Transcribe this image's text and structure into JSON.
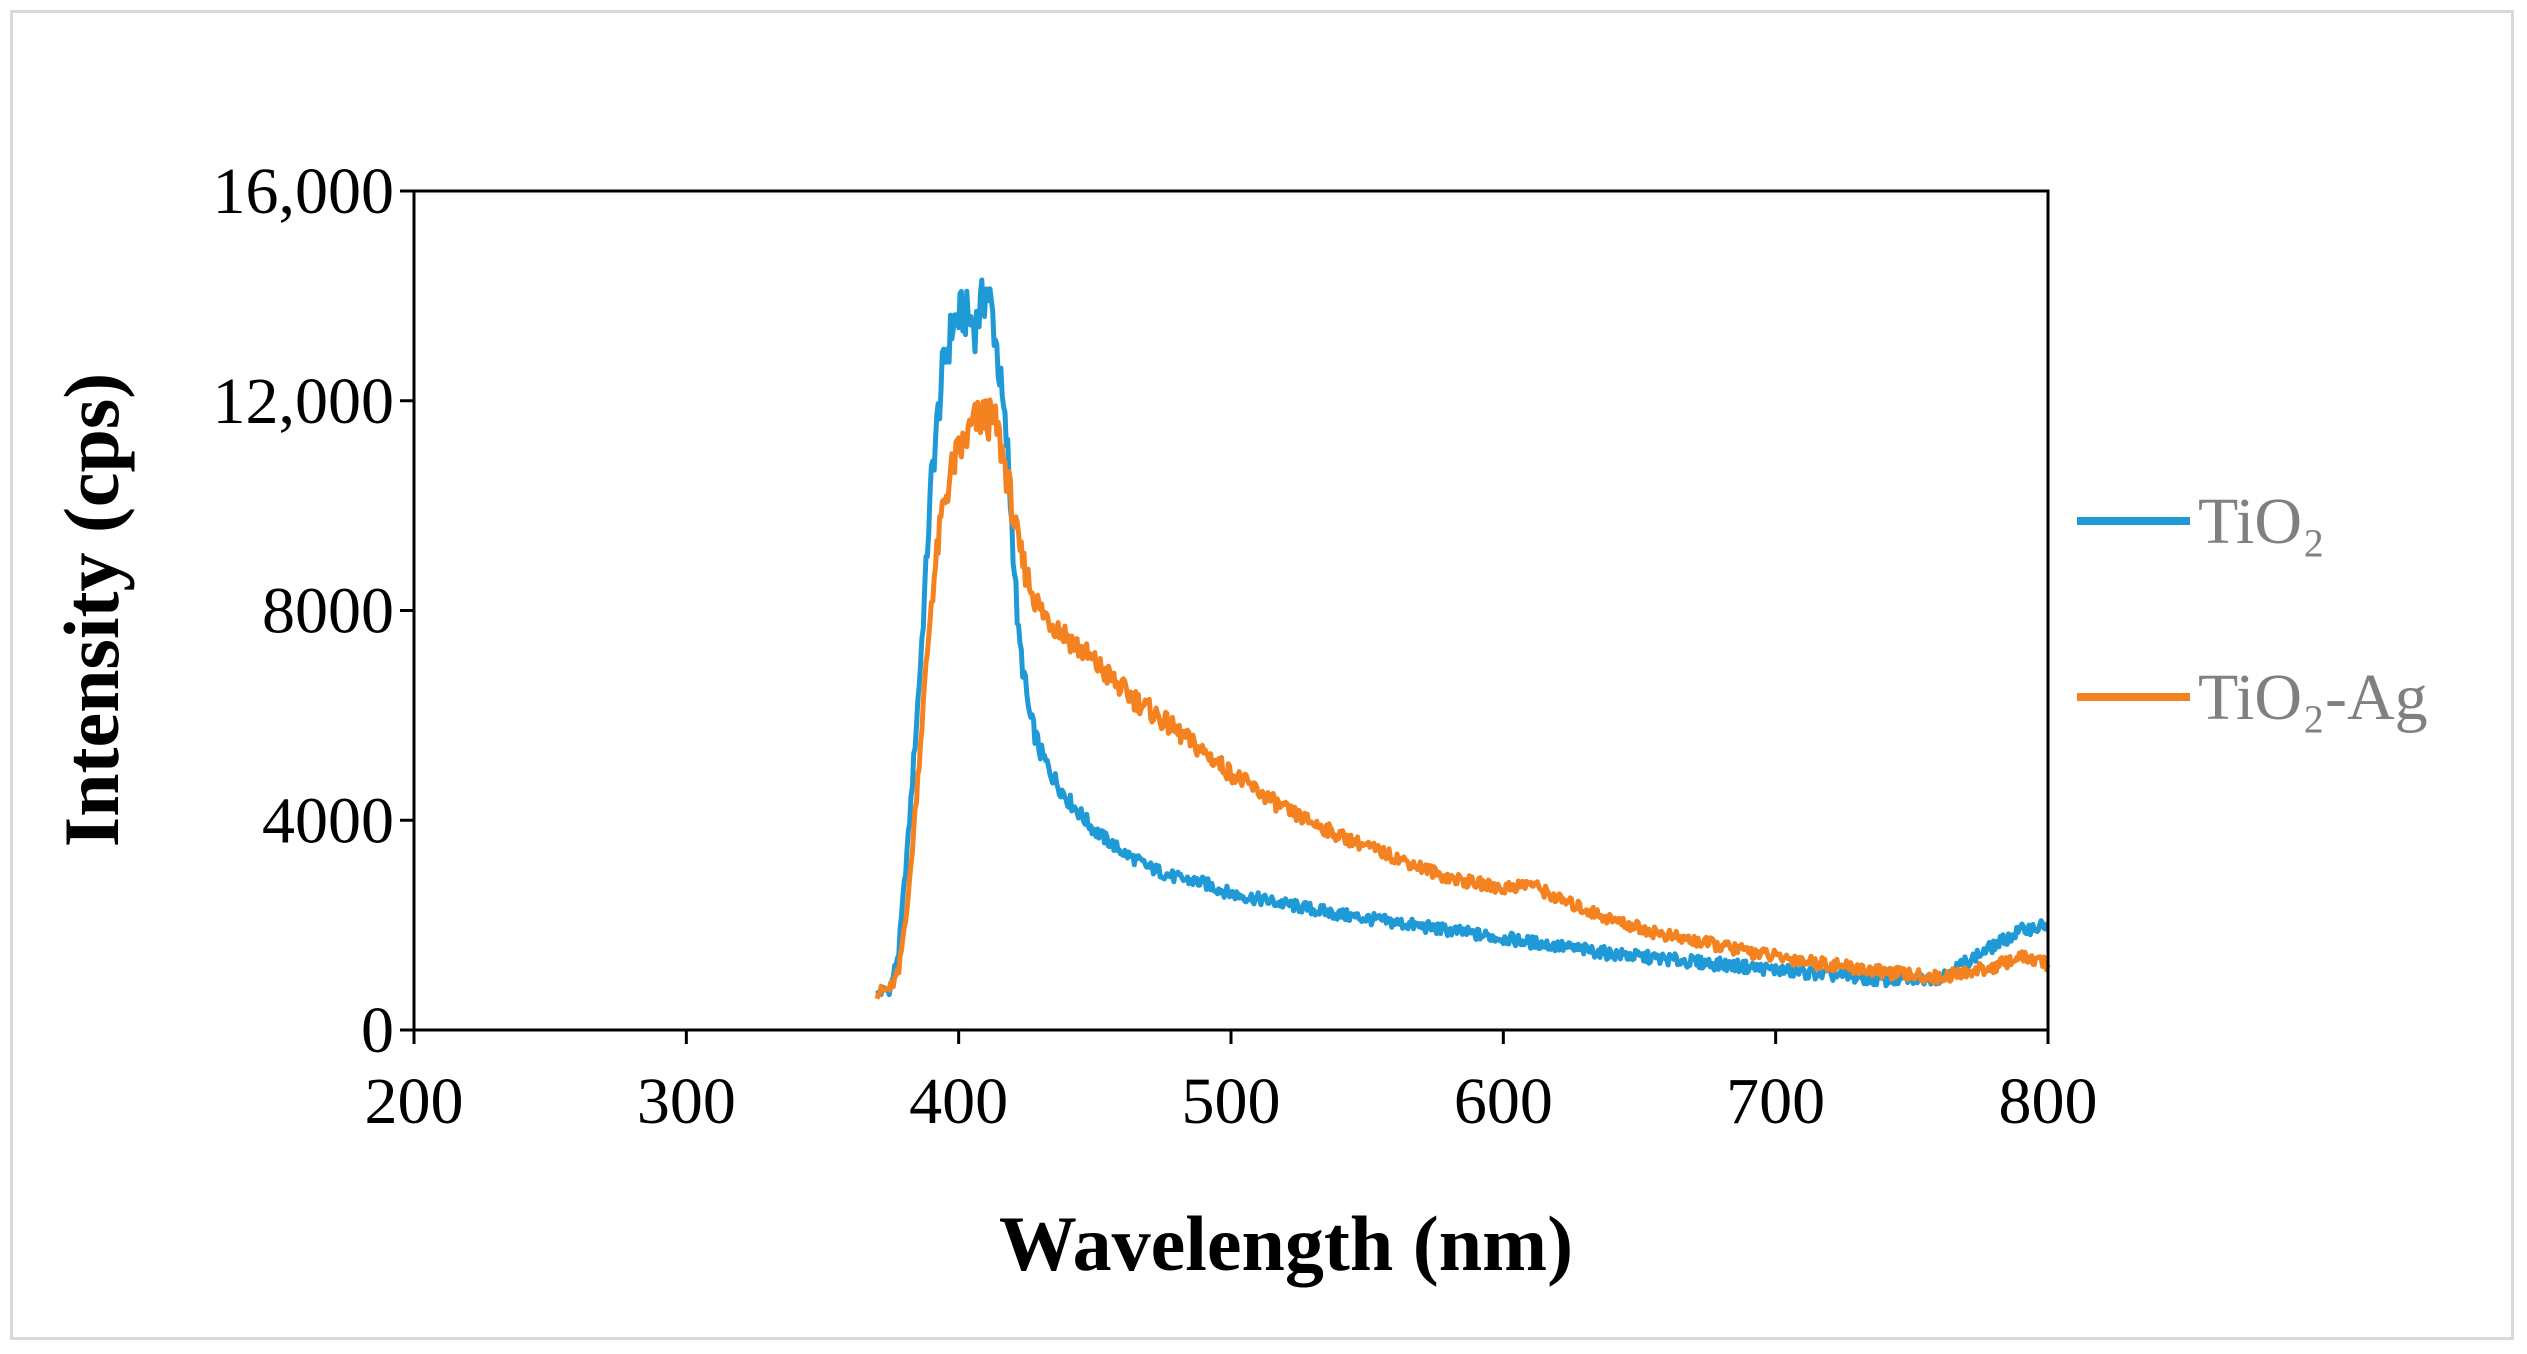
{
  "chart_data": {
    "type": "line",
    "title": "",
    "xlabel": "Wavelength (nm)",
    "ylabel": "Intensity (cps)",
    "xlim": [
      200,
      800
    ],
    "ylim": [
      0,
      16000
    ],
    "x_ticks": [
      200,
      300,
      400,
      500,
      600,
      700,
      800
    ],
    "x_tick_labels": [
      "200",
      "300",
      "400",
      "500",
      "600",
      "700",
      "800"
    ],
    "y_ticks": [
      0,
      4000,
      8000,
      12000,
      16000
    ],
    "y_tick_labels": [
      "0",
      "4000",
      "8000",
      "12,000",
      "16,000"
    ],
    "grid": false,
    "legend_position": "right",
    "series": [
      {
        "name": "TiO₂",
        "color": "#1f9ad6",
        "x": [
          370,
          375,
          378,
          382,
          386,
          390,
          394,
          398,
          402,
          406,
          410,
          412,
          414,
          418,
          420,
          422,
          426,
          430,
          435,
          440,
          450,
          460,
          470,
          480,
          490,
          500,
          520,
          540,
          560,
          580,
          600,
          620,
          640,
          660,
          680,
          700,
          720,
          740,
          760,
          780,
          790,
          800
        ],
        "values": [
          700,
          800,
          1500,
          4000,
          7000,
          10500,
          12500,
          13500,
          13700,
          13400,
          14100,
          13800,
          13000,
          11000,
          9200,
          7500,
          6000,
          5300,
          4800,
          4400,
          3800,
          3400,
          3100,
          2900,
          2800,
          2600,
          2400,
          2200,
          2050,
          1900,
          1750,
          1600,
          1450,
          1350,
          1250,
          1150,
          1050,
          950,
          1000,
          1600,
          1900,
          2000
        ]
      },
      {
        "name": "TiO₂-Ag",
        "color": "#f58220",
        "x": [
          370,
          375,
          378,
          382,
          386,
          390,
          394,
          398,
          402,
          406,
          410,
          414,
          418,
          422,
          426,
          430,
          440,
          450,
          460,
          470,
          480,
          490,
          500,
          520,
          540,
          560,
          580,
          600,
          610,
          620,
          640,
          660,
          680,
          700,
          720,
          740,
          760,
          780,
          790,
          800
        ],
        "values": [
          700,
          800,
          1100,
          2800,
          5500,
          8200,
          9900,
          10800,
          11200,
          11600,
          11700,
          11500,
          10500,
          9200,
          8500,
          8000,
          7500,
          7000,
          6500,
          6100,
          5700,
          5300,
          4900,
          4200,
          3700,
          3300,
          2900,
          2700,
          2800,
          2500,
          2100,
          1800,
          1600,
          1400,
          1250,
          1100,
          1000,
          1200,
          1400,
          1250
        ]
      }
    ]
  }
}
